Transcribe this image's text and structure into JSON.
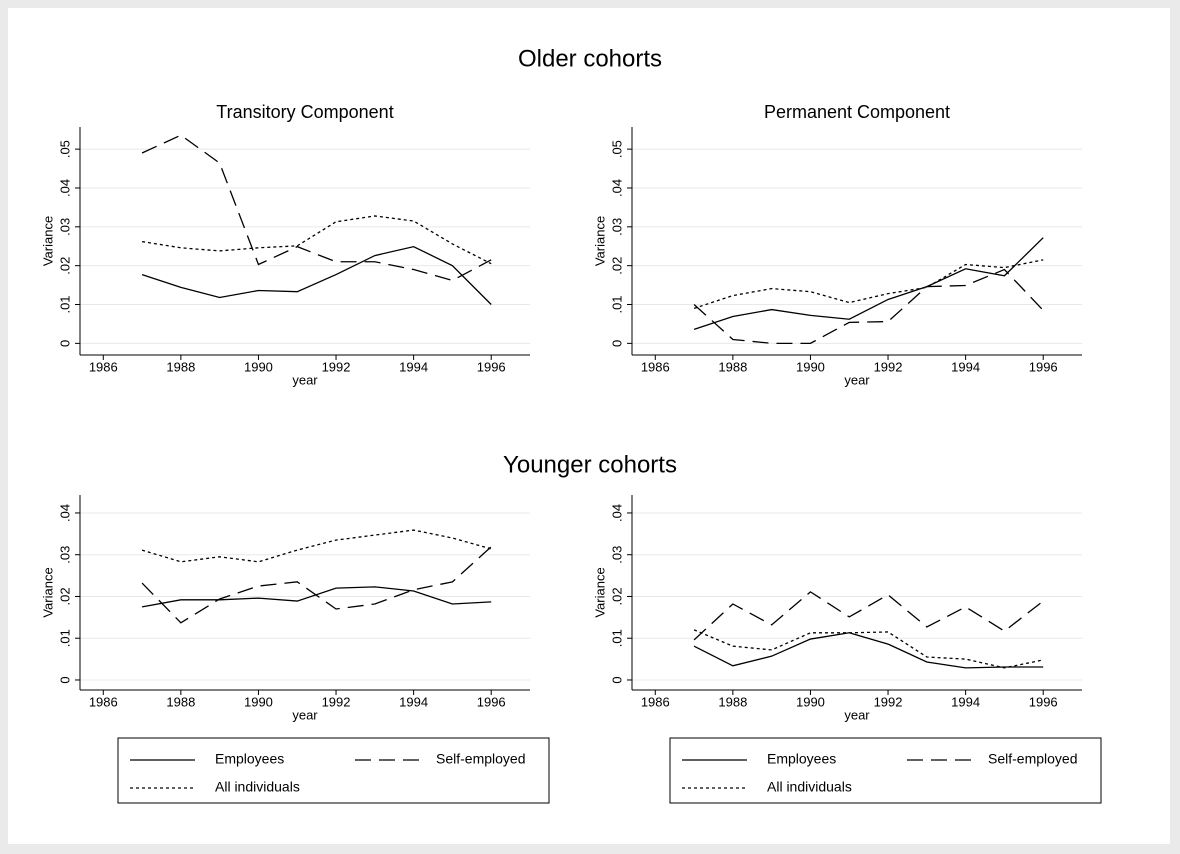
{
  "sections": [
    {
      "title": "Older cohorts"
    },
    {
      "title": "Younger cohorts"
    }
  ],
  "chart_data": [
    {
      "type": "line",
      "title": "Transitory Component",
      "xlabel": "year",
      "ylabel": "Variance",
      "x": [
        1987,
        1988,
        1989,
        1990,
        1991,
        1992,
        1993,
        1994,
        1995,
        1996
      ],
      "xlim": [
        1985.4,
        1997
      ],
      "xticks": [
        1986,
        1988,
        1990,
        1992,
        1994,
        1996
      ],
      "ylim": [
        -0.003,
        0.0557
      ],
      "yticks": [
        0,
        {
          "value": 0.01,
          "label": ".01"
        },
        {
          "value": 0.02,
          "label": ".02"
        },
        {
          "value": 0.03,
          "label": ".03"
        },
        {
          "value": 0.04,
          "label": ".04"
        },
        {
          "value": 0.05,
          "label": ".05"
        }
      ],
      "grid": true,
      "series": [
        {
          "name": "Employees",
          "color": "#000000",
          "dash": "solid",
          "values": [
            0.0177,
            0.0144,
            0.0118,
            0.0136,
            0.0133,
            0.0177,
            0.0226,
            0.0249,
            0.02,
            0.01
          ]
        },
        {
          "name": "Self-employed",
          "color": "#000000",
          "dash": "long",
          "values": [
            0.049,
            0.0536,
            0.0464,
            0.0203,
            0.0249,
            0.021,
            0.021,
            0.019,
            0.0162,
            0.0215
          ]
        },
        {
          "name": "All individuals",
          "color": "#000000",
          "dash": "short",
          "values": [
            0.0262,
            0.0246,
            0.0238,
            0.0246,
            0.0251,
            0.0313,
            0.0328,
            0.0315,
            0.0256,
            0.0205
          ]
        }
      ]
    },
    {
      "type": "line",
      "title": "Permanent Component",
      "xlabel": "year",
      "ylabel": "Variance",
      "x": [
        1987,
        1988,
        1989,
        1990,
        1991,
        1992,
        1993,
        1994,
        1995,
        1996
      ],
      "xlim": [
        1985.4,
        1997
      ],
      "xticks": [
        1986,
        1988,
        1990,
        1992,
        1994,
        1996
      ],
      "ylim": [
        -0.003,
        0.0557
      ],
      "yticks": [
        0,
        {
          "value": 0.01,
          "label": ".01"
        },
        {
          "value": 0.02,
          "label": ".02"
        },
        {
          "value": 0.03,
          "label": ".03"
        },
        {
          "value": 0.04,
          "label": ".04"
        },
        {
          "value": 0.05,
          "label": ".05"
        }
      ],
      "grid": true,
      "series": [
        {
          "name": "Employees",
          "color": "#000000",
          "dash": "solid",
          "values": [
            0.0036,
            0.0069,
            0.0087,
            0.0072,
            0.0062,
            0.0113,
            0.0146,
            0.0192,
            0.0174,
            0.0272
          ]
        },
        {
          "name": "Self-employed",
          "color": "#000000",
          "dash": "long",
          "values": [
            0.01,
            0.001,
            0,
            0,
            0.0054,
            0.0056,
            0.0146,
            0.0149,
            0.019,
            0.0085
          ]
        },
        {
          "name": "All individuals",
          "color": "#000000",
          "dash": "short",
          "values": [
            0.009,
            0.0123,
            0.0141,
            0.0133,
            0.0105,
            0.0128,
            0.0144,
            0.0203,
            0.0195,
            0.0215
          ]
        }
      ]
    },
    {
      "type": "line",
      "xlabel": "year",
      "ylabel": "Variance",
      "x": [
        1987,
        1988,
        1989,
        1990,
        1991,
        1992,
        1993,
        1994,
        1995,
        1996
      ],
      "xlim": [
        1985.4,
        1997
      ],
      "xticks": [
        1986,
        1988,
        1990,
        1992,
        1994,
        1996
      ],
      "ylim": [
        -0.0024,
        0.0443
      ],
      "yticks": [
        0,
        {
          "value": 0.01,
          "label": ".01"
        },
        {
          "value": 0.02,
          "label": ".02"
        },
        {
          "value": 0.03,
          "label": ".03"
        },
        {
          "value": 0.04,
          "label": ".04"
        }
      ],
      "grid": true,
      "legend": "bottom",
      "series": [
        {
          "name": "Employees",
          "color": "#000000",
          "dash": "solid",
          "values": [
            0.0175,
            0.0192,
            0.0192,
            0.0196,
            0.0189,
            0.022,
            0.0223,
            0.0213,
            0.0182,
            0.0187
          ]
        },
        {
          "name": "Self-employed",
          "color": "#000000",
          "dash": "long",
          "values": [
            0.0232,
            0.0137,
            0.0194,
            0.0225,
            0.0235,
            0.017,
            0.0182,
            0.0216,
            0.0235,
            0.0319
          ]
        },
        {
          "name": "All individuals",
          "color": "#000000",
          "dash": "short",
          "values": [
            0.0311,
            0.0283,
            0.0295,
            0.0283,
            0.0311,
            0.0335,
            0.0347,
            0.0359,
            0.034,
            0.0314
          ]
        }
      ]
    },
    {
      "type": "line",
      "xlabel": "year",
      "ylabel": "Variance",
      "x": [
        1987,
        1988,
        1989,
        1990,
        1991,
        1992,
        1993,
        1994,
        1995,
        1996
      ],
      "xlim": [
        1985.4,
        1997
      ],
      "xticks": [
        1986,
        1988,
        1990,
        1992,
        1994,
        1996
      ],
      "ylim": [
        -0.0024,
        0.0443
      ],
      "yticks": [
        0,
        {
          "value": 0.01,
          "label": ".01"
        },
        {
          "value": 0.02,
          "label": ".02"
        },
        {
          "value": 0.03,
          "label": ".03"
        },
        {
          "value": 0.04,
          "label": ".04"
        }
      ],
      "grid": true,
      "legend": "bottom",
      "series": [
        {
          "name": "Employees",
          "color": "#000000",
          "dash": "solid",
          "values": [
            0.0081,
            0.0034,
            0.0057,
            0.0098,
            0.0113,
            0.0086,
            0.0043,
            0.0029,
            0.0031,
            0.0031
          ]
        },
        {
          "name": "Self-employed",
          "color": "#000000",
          "dash": "long",
          "values": [
            0.0096,
            0.0182,
            0.0132,
            0.0211,
            0.0151,
            0.0204,
            0.0127,
            0.0175,
            0.0117,
            0.0189
          ]
        },
        {
          "name": "All individuals",
          "color": "#000000",
          "dash": "short",
          "values": [
            0.012,
            0.0081,
            0.0072,
            0.0113,
            0.0113,
            0.0115,
            0.0055,
            0.005,
            0.0029,
            0.0048
          ]
        }
      ]
    }
  ]
}
